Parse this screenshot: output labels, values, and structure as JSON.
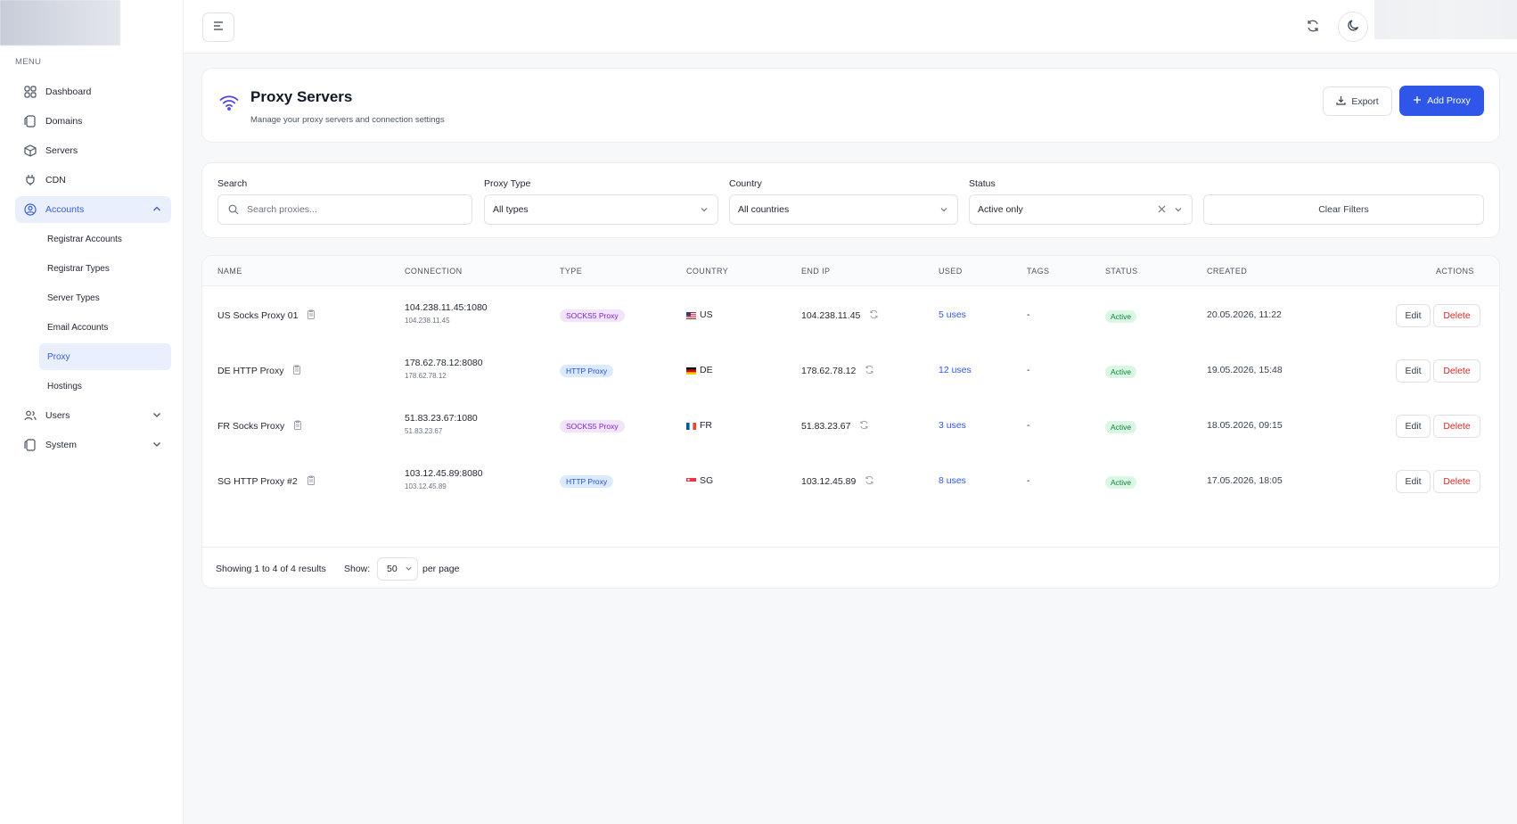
{
  "sidebar": {
    "menu_title": "MENU",
    "items": [
      {
        "label": "Dashboard",
        "icon": "grid-icon"
      },
      {
        "label": "Domains",
        "icon": "copy-icon"
      },
      {
        "label": "Servers",
        "icon": "box-icon"
      },
      {
        "label": "CDN",
        "icon": "plug-icon"
      },
      {
        "label": "Accounts",
        "icon": "user-circle-icon",
        "expanded": true
      },
      {
        "label": "Users",
        "icon": "users-icon"
      },
      {
        "label": "System",
        "icon": "copy-icon"
      }
    ],
    "accounts_sub": [
      "Registrar Accounts",
      "Registrar Types",
      "Server Types",
      "Email Accounts",
      "Proxy",
      "Hostings"
    ]
  },
  "header": {
    "title": "Proxy Servers",
    "subtitle": "Manage your proxy servers and connection settings",
    "export_label": "Export",
    "add_label": "Add Proxy"
  },
  "filters": {
    "search_label": "Search",
    "search_placeholder": "Search proxies...",
    "type_label": "Proxy Type",
    "type_value": "All types",
    "country_label": "Country",
    "country_value": "All countries",
    "status_label": "Status",
    "status_value": "Active only",
    "clear_label": "Clear Filters"
  },
  "table": {
    "headers": [
      "NAME",
      "CONNECTION",
      "TYPE",
      "COUNTRY",
      "END IP",
      "USED",
      "TAGS",
      "STATUS",
      "CREATED",
      "ACTIONS"
    ],
    "rows": [
      {
        "name": "US Socks Proxy 01",
        "connection": "104.238.11.45:1080",
        "host": "104.238.11.45",
        "type": "SOCKS5 Proxy",
        "country": "US",
        "end_ip": "104.238.11.45",
        "used": "5 uses",
        "tags": "-",
        "status": "Active",
        "created": "20.05.2026, 11:22"
      },
      {
        "name": "DE HTTP Proxy",
        "connection": "178.62.78.12:8080",
        "host": "178.62.78.12",
        "type": "HTTP Proxy",
        "country": "DE",
        "end_ip": "178.62.78.12",
        "used": "12 uses",
        "tags": "-",
        "status": "Active",
        "created": "19.05.2026, 15:48"
      },
      {
        "name": "FR Socks Proxy",
        "connection": "51.83.23.67:1080",
        "host": "51.83.23.67",
        "type": "SOCKS5 Proxy",
        "country": "FR",
        "end_ip": "51.83.23.67",
        "used": "3 uses",
        "tags": "-",
        "status": "Active",
        "created": "18.05.2026, 09:15"
      },
      {
        "name": "SG HTTP Proxy #2",
        "connection": "103.12.45.89:8080",
        "host": "103.12.45.89",
        "type": "HTTP Proxy",
        "country": "SG",
        "end_ip": "103.12.45.89",
        "used": "8 uses",
        "tags": "-",
        "status": "Active",
        "created": "17.05.2026, 18:05"
      }
    ],
    "edit_label": "Edit",
    "delete_label": "Delete"
  },
  "footer": {
    "showing": "Showing 1 to 4 of 4 results",
    "show_label": "Show:",
    "per_page_value": "50",
    "per_page_label": "per page"
  },
  "colors": {
    "accent": "#2f56e8",
    "danger": "#dc2626",
    "active_bg": "#d9f7e3",
    "socks_bg": "#f1e4fb",
    "http_bg": "#dceafe"
  }
}
